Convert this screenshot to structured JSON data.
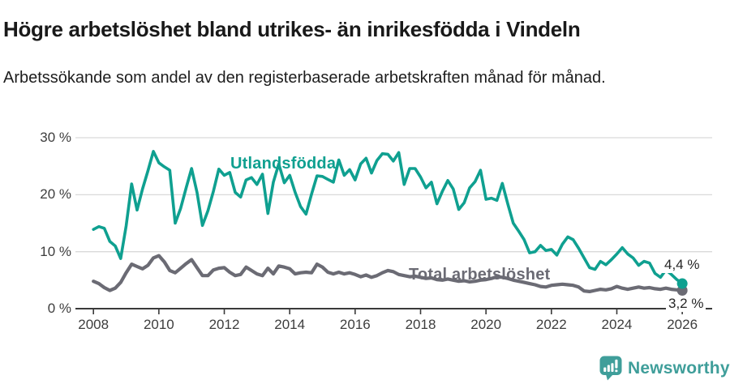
{
  "header": {
    "title": "Högre arbetslöshet bland utrikes- än inrikesfödda i Vindeln",
    "subtitle": "Arbetssökande som andel av den registerbaserade arbetskraften månad för månad."
  },
  "logo": {
    "text": "Newsworthy",
    "icon": "newsworthy-chart-bubble-icon",
    "color": "#3f9e9a"
  },
  "colors": {
    "series_foreign_born": "#0fa090",
    "series_total": "#6b6b74",
    "gridline": "#d9d9d9",
    "axis": "#3a3a3a"
  },
  "chart_data": {
    "type": "line",
    "title": "Högre arbetslöshet bland utrikes- än inrikesfödda i Vindeln",
    "subtitle": "Arbetssökande som andel av den registerbaserade arbetskraften månad för månad.",
    "x_unit": "year (monthly series, sampled every 2 months)",
    "x_start": 2008.0,
    "x_step_months": 2,
    "x_ticks": [
      2008,
      2010,
      2012,
      2014,
      2016,
      2018,
      2020,
      2022,
      2024,
      2026
    ],
    "y_ticks": [
      0,
      10,
      20,
      30
    ],
    "y_tick_suffix": " %",
    "ylim": [
      0,
      31
    ],
    "grid": "horizontal-only",
    "legend": "inline-labels",
    "series": [
      {
        "name": "Utlandsfödda",
        "color": "#0fa090",
        "end_label": "4,4 %",
        "end_value": 4.4,
        "values": [
          13.9,
          14.4,
          14.1,
          11.8,
          11.0,
          8.8,
          14.5,
          21.9,
          17.3,
          21.0,
          24.2,
          27.6,
          25.6,
          24.9,
          24.3,
          15.0,
          17.6,
          21.2,
          24.6,
          20.4,
          14.6,
          17.2,
          20.6,
          24.5,
          23.4,
          23.9,
          20.4,
          19.6,
          22.6,
          23.0,
          21.8,
          23.6,
          16.7,
          22.2,
          25.4,
          22.1,
          23.4,
          20.4,
          17.9,
          16.6,
          20.1,
          23.3,
          23.2,
          22.7,
          22.2,
          26.1,
          23.4,
          24.4,
          22.6,
          25.4,
          26.4,
          23.8,
          26.0,
          27.2,
          27.1,
          25.9,
          27.4,
          21.8,
          24.6,
          24.6,
          23.1,
          21.2,
          22.2,
          18.4,
          20.6,
          22.5,
          21.0,
          17.4,
          18.6,
          21.2,
          22.3,
          24.3,
          19.2,
          19.4,
          19.0,
          22.0,
          18.4,
          15.0,
          13.6,
          12.1,
          9.8,
          10.0,
          11.1,
          10.2,
          10.4,
          9.4,
          11.3,
          12.6,
          12.1,
          10.6,
          8.9,
          7.2,
          6.9,
          8.3,
          7.7,
          8.6,
          9.6,
          10.7,
          9.6,
          8.9,
          7.6,
          8.3,
          8.0,
          6.2,
          5.5,
          6.8,
          6.0,
          5.1,
          4.4
        ]
      },
      {
        "name": "Total arbetslöshet",
        "color": "#6b6b74",
        "end_label": "3,2 %",
        "end_value": 3.2,
        "values": [
          4.8,
          4.4,
          3.7,
          3.2,
          3.6,
          4.6,
          6.3,
          7.8,
          7.4,
          7.0,
          7.6,
          8.9,
          9.3,
          8.2,
          6.7,
          6.3,
          7.1,
          7.9,
          8.6,
          7.2,
          5.8,
          5.8,
          6.8,
          7.1,
          7.2,
          6.4,
          5.8,
          6.0,
          7.3,
          6.7,
          6.1,
          5.8,
          7.1,
          6.1,
          7.5,
          7.3,
          7.0,
          6.1,
          6.3,
          6.4,
          6.3,
          7.8,
          7.3,
          6.4,
          6.1,
          6.4,
          6.1,
          6.3,
          6.0,
          5.6,
          5.9,
          5.5,
          5.8,
          6.3,
          6.7,
          6.5,
          6.0,
          5.8,
          5.6,
          5.7,
          5.5,
          5.3,
          5.4,
          5.1,
          5.0,
          5.2,
          5.0,
          4.8,
          4.9,
          4.7,
          4.8,
          5.0,
          5.1,
          5.3,
          5.6,
          5.5,
          5.3,
          5.0,
          4.8,
          4.6,
          4.4,
          4.2,
          3.9,
          3.8,
          4.1,
          4.2,
          4.3,
          4.2,
          4.1,
          3.8,
          3.1,
          3.0,
          3.2,
          3.4,
          3.3,
          3.5,
          3.9,
          3.6,
          3.4,
          3.6,
          3.8,
          3.6,
          3.7,
          3.5,
          3.4,
          3.6,
          3.4,
          3.3,
          3.2
        ]
      }
    ],
    "series_label_positions_note": "Utlandsfödda label over teal line ~2012; Total arbetslöshet label over gray line ~2018"
  }
}
